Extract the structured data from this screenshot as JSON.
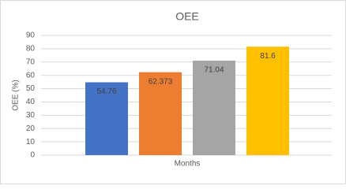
{
  "chart_data": {
    "type": "bar",
    "title": "OEE",
    "y_label": "OEE (%)",
    "x_label": "Months",
    "values": [
      54.76,
      62.373,
      71.04,
      81.6
    ],
    "colors": [
      "#4472c4",
      "#ed7d31",
      "#a5a5a5",
      "#ffc000"
    ],
    "ylim": [
      0,
      90
    ],
    "yticks": [
      0,
      10,
      20,
      30,
      40,
      50,
      60,
      70,
      80,
      90
    ],
    "grid": true
  }
}
